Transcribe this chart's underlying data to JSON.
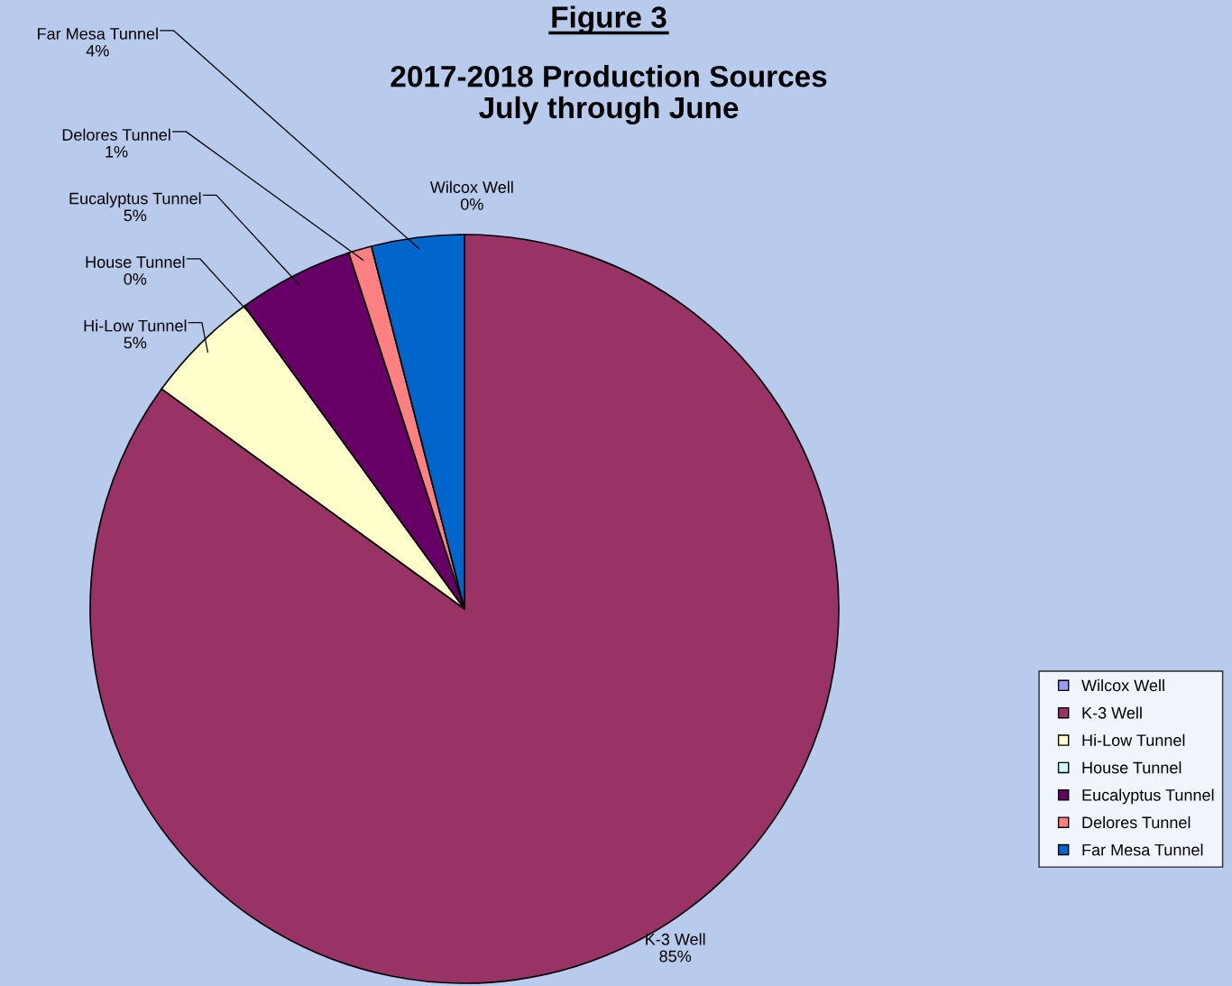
{
  "chart_data": {
    "type": "pie",
    "title": "Figure 3",
    "subtitle": "2017-2018 Production Sources\nJuly through June",
    "categories": [
      "Wilcox Well",
      "K-3 Well",
      "Hi-Low Tunnel",
      "House Tunnel",
      "Eucalyptus Tunnel",
      "Delores Tunnel",
      "Far Mesa Tunnel"
    ],
    "values": [
      0,
      85,
      5,
      0,
      5,
      1,
      4
    ],
    "value_labels": [
      "0%",
      "85%",
      "5%",
      "0%",
      "5%",
      "1%",
      "4%"
    ],
    "colors": [
      "#9999ff",
      "#993366",
      "#ffffcc",
      "#ccffff",
      "#660066",
      "#ff8080",
      "#0066cc"
    ],
    "legend": "right"
  }
}
